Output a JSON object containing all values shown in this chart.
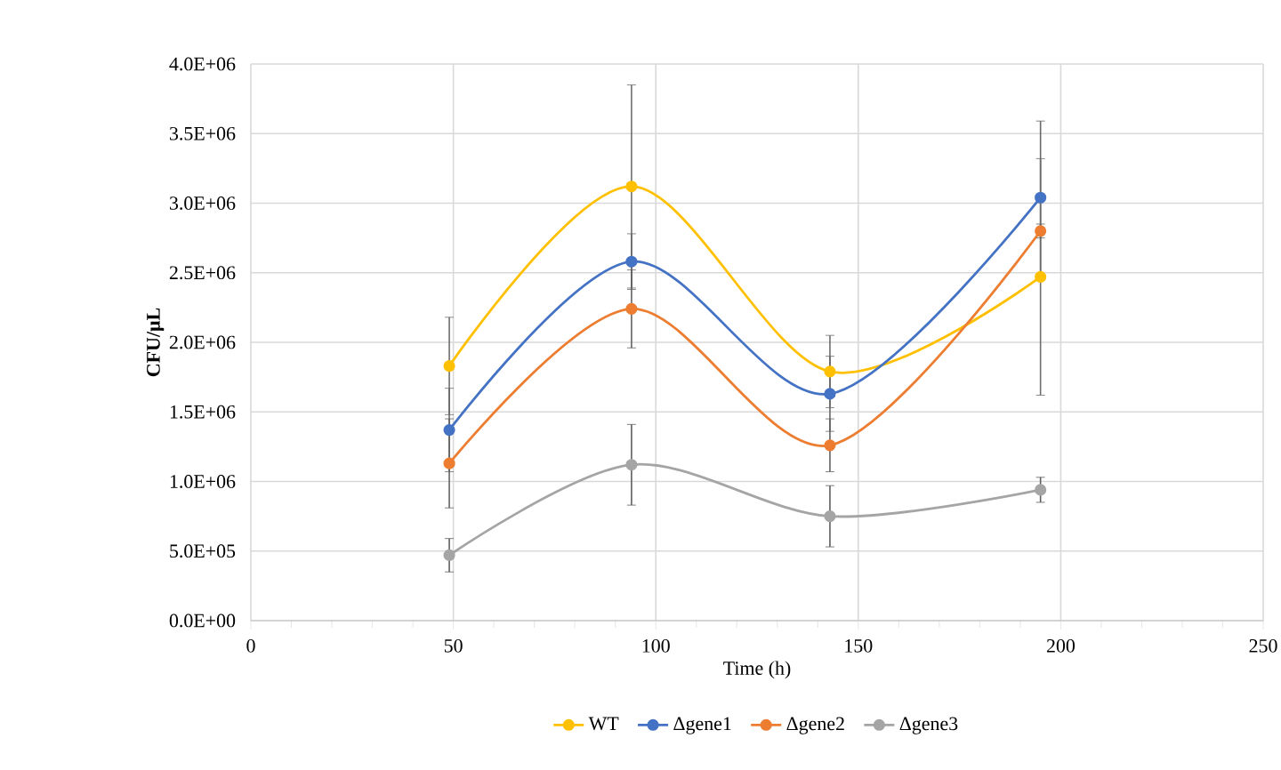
{
  "chart_data": {
    "type": "line",
    "xlabel": "Time (h)",
    "ylabel": "CFU/µL",
    "x": [
      49,
      94,
      143,
      195
    ],
    "series": [
      {
        "name": "WT",
        "color": "#ffc000",
        "values": [
          1830000,
          3120000,
          1790000,
          2470000
        ],
        "errors": [
          350000,
          730000,
          260000,
          850000
        ]
      },
      {
        "name": "Δgene1",
        "color": "#4472c4",
        "values": [
          1370000,
          2580000,
          1630000,
          3040000
        ],
        "errors": [
          300000,
          200000,
          270000,
          550000
        ]
      },
      {
        "name": "Δgene2",
        "color": "#ed7d31",
        "values": [
          1130000,
          2240000,
          1260000,
          2800000
        ],
        "errors": [
          320000,
          280000,
          190000,
          50000
        ]
      },
      {
        "name": "Δgene3",
        "color": "#a5a5a5",
        "values": [
          470000,
          1120000,
          750000,
          940000
        ],
        "errors": [
          120000,
          290000,
          220000,
          90000
        ]
      }
    ],
    "xlim": [
      0,
      250
    ],
    "xticks": [
      0,
      50,
      100,
      150,
      200,
      250
    ],
    "ylim": [
      0,
      4000000
    ],
    "yticks": [
      {
        "value": 0,
        "label": "0.0E+00"
      },
      {
        "value": 500000,
        "label": "5.0E+05"
      },
      {
        "value": 1000000,
        "label": "1.0E+06"
      },
      {
        "value": 1500000,
        "label": "1.5E+06"
      },
      {
        "value": 2000000,
        "label": "2.0E+06"
      },
      {
        "value": 2500000,
        "label": "2.5E+06"
      },
      {
        "value": 3000000,
        "label": "3.0E+06"
      },
      {
        "value": 3500000,
        "label": "3.5E+06"
      },
      {
        "value": 4000000,
        "label": "4.0E+06"
      }
    ],
    "grid": true,
    "legend": "bottom",
    "marker": "circle",
    "line_style": "solid"
  }
}
